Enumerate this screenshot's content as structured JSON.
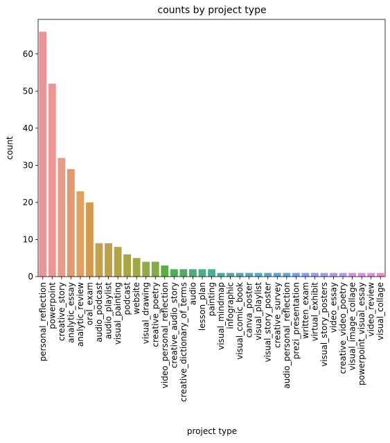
{
  "chart_data": {
    "type": "bar",
    "title": "counts by project type",
    "xlabel": "project type",
    "ylabel": "count",
    "ylim": [
      0,
      69.3
    ],
    "yticks": [
      0,
      10,
      20,
      30,
      40,
      50,
      60
    ],
    "grid": false,
    "categories": [
      "personal_reflection",
      "powerpoint",
      "creative_story",
      "analytic_essay",
      "analytic_review",
      "oral_exam",
      "audio_podcast",
      "audio_playlist",
      "visual_painting",
      "podcast",
      "website",
      "visual_drawing",
      "creative_poetry",
      "video_personal_reflection",
      "creative_audio_story",
      "creative_dictionary_of_terms",
      "audio",
      "lesson_plan",
      "painting",
      "visual_mindmap",
      "infographic",
      "visual_comic_book",
      "canva_poster",
      "visual_playlist",
      "visual_story_poster",
      "creative_survey",
      "audio_personal_reflection",
      "prezi_presentation",
      "written_exam",
      "virtual_exhibit",
      "visual_story_posters",
      "video_essay",
      "creative_video_poetry",
      "visual_image_collage",
      "powerpoint_visual_essay",
      "video_review",
      "visual_collage"
    ],
    "values": [
      66,
      52,
      32,
      29,
      23,
      20,
      9,
      9,
      8,
      6,
      5,
      4,
      4,
      3,
      2,
      2,
      2,
      2,
      2,
      1,
      1,
      1,
      1,
      1,
      1,
      1,
      1,
      1,
      1,
      1,
      1,
      1,
      1,
      1,
      1,
      1,
      1
    ],
    "colors": [
      "#ea9698",
      "#ea9792",
      "#e89b86",
      "#e39a6f",
      "#dea15f",
      "#d59a4f",
      "#c5a04b",
      "#bca148",
      "#b3a445",
      "#a9a543",
      "#9fa841",
      "#93a944",
      "#85ab44",
      "#58ad46",
      "#4eae55",
      "#4dae67",
      "#4cad7a",
      "#4ead88",
      "#4eac93",
      "#4fab9d",
      "#50aba7",
      "#52abb0",
      "#54aab8",
      "#57a9c2",
      "#5aa8cc",
      "#5ea6d4",
      "#66a4de",
      "#74a1e6",
      "#87a0ea",
      "#9a9dec",
      "#aa9aed",
      "#b797ec",
      "#c595ea",
      "#d092e5",
      "#d990df",
      "#df90d7",
      "#e490cc"
    ]
  }
}
